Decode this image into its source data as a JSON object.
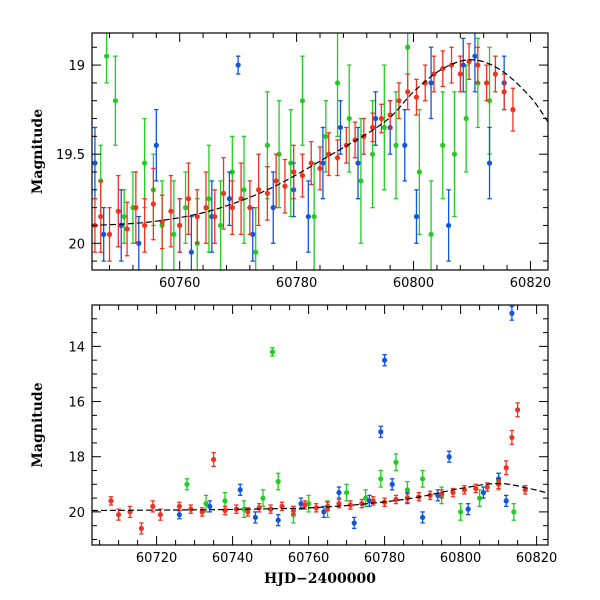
{
  "chart_data": [
    {
      "type": "scatter",
      "title": "",
      "xlabel": "",
      "ylabel": "Magnitude",
      "xlim": [
        60745,
        60823
      ],
      "ylim": [
        20.15,
        18.82
      ],
      "y_inverted": true,
      "xticks": [
        60760,
        60780,
        60800,
        60820
      ],
      "yticks": [
        19,
        19.5,
        20
      ],
      "ytick_labels": [
        "19",
        "19.5",
        "20"
      ],
      "error_bars": true,
      "model_curve": {
        "color": "#000000",
        "x": [
          60745,
          60755,
          60765,
          60775,
          60785,
          60795,
          60800,
          60805,
          60810,
          60815,
          60820,
          60823
        ],
        "y": [
          19.9,
          19.88,
          19.82,
          19.7,
          19.52,
          19.32,
          19.15,
          19.02,
          18.97,
          19.03,
          19.18,
          19.32
        ]
      },
      "series": [
        {
          "color": "#22cc22",
          "x": [
            60746.5,
            60747.5,
            60749,
            60750.5,
            60752,
            60754,
            60755.5,
            60757,
            60759,
            60761,
            60763,
            60765,
            60767,
            60769,
            60771,
            60773,
            60775,
            60777,
            60779,
            60781,
            60783,
            60785,
            60787,
            60789,
            60791,
            60793,
            60795,
            60797,
            60799,
            60801,
            60803,
            60805,
            60807,
            60809,
            60811,
            60813
          ],
          "y": [
            19.65,
            18.95,
            19.2,
            19.85,
            19.8,
            19.55,
            19.7,
            19.9,
            19.95,
            19.8,
            20.0,
            19.75,
            19.9,
            19.6,
            19.7,
            20.05,
            19.45,
            19.5,
            19.55,
            19.2,
            19.85,
            19.4,
            19.1,
            19.3,
            19.65,
            19.5,
            19.35,
            19.45,
            18.9,
            19.6,
            19.95,
            19.45,
            19.5,
            19.3,
            19.1,
            19.2
          ],
          "err": [
            0.2,
            0.15,
            0.25,
            0.15,
            0.2,
            0.25,
            0.2,
            0.25,
            0.3,
            0.2,
            0.25,
            0.3,
            0.25,
            0.2,
            0.3,
            0.25,
            0.3,
            0.3,
            0.3,
            0.25,
            0.3,
            0.2,
            0.3,
            0.3,
            0.35,
            0.3,
            0.35,
            0.3,
            0.25,
            0.35,
            0.3,
            0.3,
            0.35,
            0.3,
            0.25,
            0.3
          ]
        },
        {
          "color": "#1155dd",
          "x": [
            60745.5,
            60747,
            60750,
            60753,
            60756,
            60760,
            60762,
            60765.5,
            60768.5,
            60770,
            60772.5,
            60776,
            60779.5,
            60782,
            60784.5,
            60787.5,
            60790.5,
            60793.5,
            60796,
            60798.5,
            60800.5,
            60803,
            60806,
            60808.5,
            60810.5,
            60813,
            60815.5
          ],
          "y": [
            19.55,
            19.95,
            19.9,
            20.0,
            19.45,
            19.9,
            20.05,
            19.85,
            19.75,
            19.0,
            19.95,
            19.8,
            19.7,
            19.85,
            19.55,
            19.35,
            19.55,
            19.3,
            19.35,
            19.45,
            19.85,
            19.1,
            19.9,
            19.0,
            18.95,
            19.55,
            19.1
          ],
          "err": [
            0.2,
            0.15,
            0.2,
            0.15,
            0.2,
            0.15,
            0.2,
            0.2,
            0.15,
            0.05,
            0.15,
            0.2,
            0.15,
            0.2,
            0.2,
            0.15,
            0.2,
            0.15,
            0.15,
            0.2,
            0.15,
            0.2,
            0.2,
            0.15,
            0.2,
            0.2,
            0.15
          ]
        },
        {
          "color": "#ee3322",
          "x": [
            60745.5,
            60746.5,
            60748,
            60749.5,
            60751,
            60752.5,
            60754,
            60755.5,
            60757,
            60758.5,
            60760,
            60761.5,
            60763,
            60764.5,
            60766,
            60767.5,
            60769,
            60770.5,
            60772,
            60773.5,
            60775,
            60776.5,
            60778,
            60779.5,
            60781,
            60782.5,
            60784,
            60785.5,
            60787,
            60788.5,
            60790,
            60791.5,
            60793,
            60794.5,
            60796,
            60797.5,
            60799,
            60800.5,
            60802,
            60803.5,
            60805,
            60806.5,
            60808,
            60809.5,
            60811,
            60812.5,
            60814,
            60815.5,
            60817
          ],
          "y": [
            19.9,
            19.85,
            19.95,
            19.82,
            19.92,
            19.8,
            19.9,
            19.78,
            19.88,
            19.82,
            19.9,
            19.75,
            19.85,
            19.8,
            19.85,
            19.72,
            19.8,
            19.75,
            19.8,
            19.7,
            19.72,
            19.65,
            19.68,
            19.6,
            19.62,
            19.55,
            19.58,
            19.5,
            19.52,
            19.45,
            19.42,
            19.4,
            19.35,
            19.3,
            19.28,
            19.2,
            19.15,
            19.18,
            19.1,
            19.05,
            19.02,
            19.0,
            19.05,
            18.98,
            19.0,
            19.1,
            19.05,
            19.15,
            19.25
          ],
          "err": [
            0.15,
            0.2,
            0.15,
            0.2,
            0.15,
            0.2,
            0.15,
            0.2,
            0.15,
            0.2,
            0.15,
            0.2,
            0.15,
            0.2,
            0.15,
            0.2,
            0.15,
            0.2,
            0.15,
            0.2,
            0.15,
            0.15,
            0.15,
            0.15,
            0.12,
            0.12,
            0.12,
            0.12,
            0.1,
            0.1,
            0.1,
            0.1,
            0.08,
            0.08,
            0.08,
            0.1,
            0.1,
            0.1,
            0.1,
            0.1,
            0.1,
            0.1,
            0.1,
            0.1,
            0.1,
            0.1,
            0.1,
            0.1,
            0.12
          ]
        }
      ]
    },
    {
      "type": "scatter",
      "title": "",
      "xlabel": "HJD−2400000",
      "ylabel": "Magnitude",
      "xlim": [
        60703,
        60823
      ],
      "ylim": [
        21.2,
        12.5
      ],
      "y_inverted": true,
      "xticks": [
        60720,
        60740,
        60760,
        60780,
        60800,
        60820
      ],
      "yticks": [
        14,
        16,
        18,
        20
      ],
      "ytick_labels": [
        "14",
        "16",
        "18",
        "20"
      ],
      "error_bars": true,
      "model_curve": {
        "color": "#000000",
        "x": [
          60703,
          60725,
          60745,
          60765,
          60785,
          60800,
          60810,
          60818,
          60823
        ],
        "y": [
          19.95,
          19.93,
          19.9,
          19.82,
          19.55,
          19.15,
          18.97,
          19.15,
          19.32
        ]
      },
      "series": [
        {
          "color": "#22cc22",
          "x": [
            60728,
            60733,
            60738,
            60743,
            60748,
            60750.5,
            60752,
            60756,
            60760,
            60765,
            60770,
            60775,
            60779,
            60783,
            60786,
            60790,
            60795,
            60800,
            60805,
            60810,
            60814
          ],
          "y": [
            19.0,
            19.7,
            19.6,
            19.9,
            19.5,
            14.2,
            18.9,
            20.1,
            19.7,
            19.9,
            19.3,
            19.5,
            18.8,
            18.2,
            19.2,
            18.8,
            19.4,
            20.0,
            19.5,
            18.9,
            20.0
          ],
          "err": [
            0.2,
            0.3,
            0.3,
            0.3,
            0.3,
            0.15,
            0.3,
            0.3,
            0.3,
            0.3,
            0.3,
            0.3,
            0.3,
            0.3,
            0.3,
            0.3,
            0.3,
            0.3,
            0.3,
            0.3,
            0.3
          ]
        },
        {
          "color": "#1155dd",
          "x": [
            60726,
            60734,
            60742,
            60746,
            60752,
            60758,
            60764,
            60768,
            60772,
            60776,
            60779,
            60780,
            60782,
            60786,
            60790,
            60794,
            60797,
            60802,
            60806,
            60810,
            60812,
            60813.5
          ],
          "y": [
            20.1,
            19.8,
            19.2,
            20.2,
            20.3,
            19.7,
            20.0,
            19.3,
            20.4,
            19.6,
            17.1,
            14.5,
            19.0,
            19.5,
            20.2,
            19.4,
            18.0,
            19.9,
            19.3,
            18.8,
            19.6,
            12.8
          ],
          "err": [
            0.15,
            0.2,
            0.2,
            0.2,
            0.2,
            0.2,
            0.2,
            0.2,
            0.2,
            0.2,
            0.2,
            0.2,
            0.2,
            0.2,
            0.2,
            0.2,
            0.2,
            0.2,
            0.2,
            0.2,
            0.2,
            0.25
          ]
        },
        {
          "color": "#ee3322",
          "x": [
            60708,
            60710,
            60713,
            60716,
            60719,
            60721,
            60726,
            60729,
            60732,
            60735,
            60738,
            60741,
            60744,
            60747,
            60750,
            60753,
            60756,
            60759,
            60762,
            60765,
            60768,
            60771,
            60774,
            60777,
            60780,
            60783,
            60786,
            60789,
            60792,
            60795,
            60798,
            60801,
            60804,
            60807,
            60810,
            60812,
            60813.5,
            60815,
            60817
          ],
          "y": [
            19.6,
            20.1,
            20.0,
            20.6,
            19.8,
            20.1,
            19.8,
            19.9,
            20.0,
            18.1,
            19.95,
            19.9,
            20.0,
            19.85,
            19.9,
            19.8,
            19.95,
            19.75,
            19.85,
            19.8,
            19.7,
            19.75,
            19.7,
            19.6,
            19.65,
            19.55,
            19.5,
            19.45,
            19.4,
            19.35,
            19.3,
            19.2,
            19.15,
            19.1,
            19.0,
            18.4,
            17.3,
            16.3,
            19.2
          ],
          "err": [
            0.15,
            0.2,
            0.2,
            0.2,
            0.2,
            0.2,
            0.15,
            0.15,
            0.15,
            0.25,
            0.15,
            0.15,
            0.15,
            0.15,
            0.15,
            0.15,
            0.15,
            0.15,
            0.15,
            0.15,
            0.15,
            0.15,
            0.15,
            0.15,
            0.15,
            0.15,
            0.15,
            0.15,
            0.15,
            0.15,
            0.15,
            0.15,
            0.15,
            0.15,
            0.15,
            0.25,
            0.25,
            0.25,
            0.15
          ]
        }
      ]
    }
  ]
}
